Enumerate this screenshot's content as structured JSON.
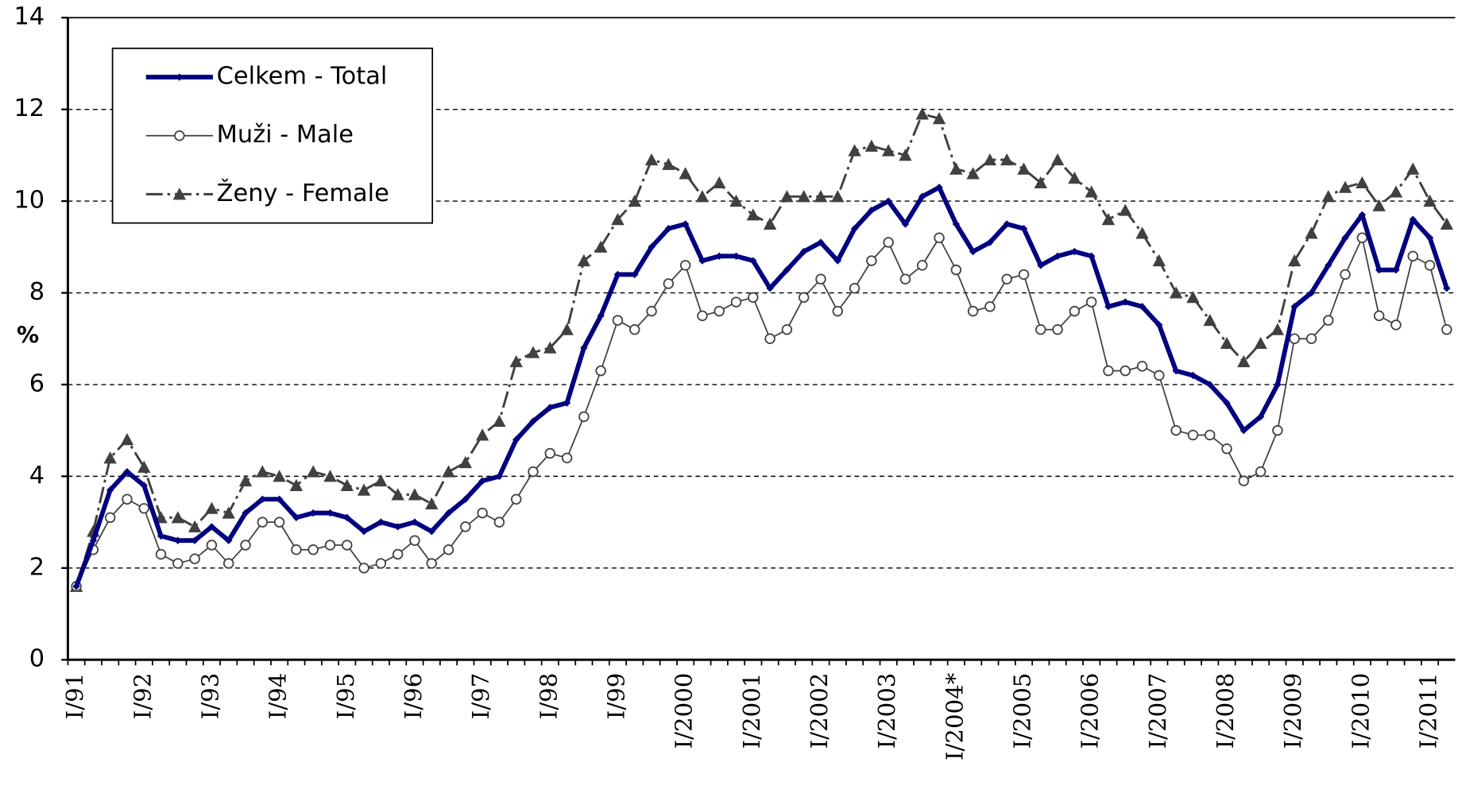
{
  "chart_data": {
    "type": "line",
    "y_label": "%",
    "categories": [
      "I/91",
      null,
      null,
      null,
      "I/92",
      null,
      null,
      null,
      "I/93",
      null,
      null,
      null,
      "I/94",
      null,
      null,
      null,
      "I/95",
      null,
      null,
      null,
      "I/96",
      null,
      null,
      null,
      "I/97",
      null,
      null,
      null,
      "I/98",
      null,
      null,
      null,
      "I/99",
      null,
      null,
      null,
      "I/2000",
      null,
      null,
      null,
      "I/2001",
      null,
      null,
      null,
      "I/2002",
      null,
      null,
      null,
      "I/2003",
      null,
      null,
      null,
      "I/2004*",
      null,
      null,
      null,
      "I/2005",
      null,
      null,
      null,
      "I/2006",
      null,
      null,
      null,
      "I/2007",
      null,
      null,
      null,
      "I/2008",
      null,
      null,
      null,
      "I/2009",
      null,
      null,
      null,
      "I/2010",
      null,
      null,
      null,
      "I/2011",
      null
    ],
    "series": [
      {
        "name": "Celkem - Total",
        "color": "#000080",
        "marker": "diamond",
        "values": [
          1.6,
          2.6,
          3.7,
          4.1,
          3.8,
          2.7,
          2.6,
          2.6,
          2.9,
          2.6,
          3.2,
          3.5,
          3.5,
          3.1,
          3.2,
          3.2,
          3.1,
          2.8,
          3.0,
          2.9,
          3.0,
          2.8,
          3.2,
          3.5,
          3.9,
          4.0,
          4.8,
          5.2,
          5.5,
          5.6,
          6.8,
          7.5,
          8.4,
          8.4,
          9.0,
          9.4,
          9.5,
          8.7,
          8.8,
          8.8,
          8.7,
          8.1,
          8.5,
          8.9,
          9.1,
          8.7,
          9.4,
          9.8,
          10.0,
          9.5,
          10.1,
          10.3,
          9.5,
          8.9,
          9.1,
          9.5,
          9.4,
          8.6,
          8.8,
          8.9,
          8.8,
          7.7,
          7.8,
          7.7,
          7.3,
          6.3,
          6.2,
          6.0,
          5.6,
          5.0,
          5.3,
          6.0,
          7.7,
          8.0,
          8.6,
          9.2,
          9.7,
          8.5,
          8.5,
          9.6,
          9.2,
          8.1
        ]
      },
      {
        "name": "Muži - Male",
        "color": "#404040",
        "marker": "circle",
        "values": [
          1.6,
          2.4,
          3.1,
          3.5,
          3.3,
          2.3,
          2.1,
          2.2,
          2.5,
          2.1,
          2.5,
          3.0,
          3.0,
          2.4,
          2.4,
          2.5,
          2.5,
          2.0,
          2.1,
          2.3,
          2.6,
          2.1,
          2.4,
          2.9,
          3.2,
          3.0,
          3.5,
          4.1,
          4.5,
          4.4,
          5.3,
          6.3,
          7.4,
          7.2,
          7.6,
          8.2,
          8.6,
          7.5,
          7.6,
          7.8,
          7.9,
          7.0,
          7.2,
          7.9,
          8.3,
          7.6,
          8.1,
          8.7,
          9.1,
          8.3,
          8.6,
          9.2,
          8.5,
          7.6,
          7.7,
          8.3,
          8.4,
          7.2,
          7.2,
          7.6,
          7.8,
          6.3,
          6.3,
          6.4,
          6.2,
          5.0,
          4.9,
          4.9,
          4.6,
          3.9,
          4.1,
          5.0,
          7.0,
          7.0,
          7.4,
          8.4,
          9.2,
          7.5,
          7.3,
          8.8,
          8.6,
          7.2
        ]
      },
      {
        "name": "Ženy - Female",
        "color": "#404040",
        "marker": "triangle",
        "values": [
          1.6,
          2.8,
          4.4,
          4.8,
          4.2,
          3.1,
          3.1,
          2.9,
          3.3,
          3.2,
          3.9,
          4.1,
          4.0,
          3.8,
          4.1,
          4.0,
          3.8,
          3.7,
          3.9,
          3.6,
          3.6,
          3.4,
          4.1,
          4.3,
          4.9,
          5.2,
          6.5,
          6.7,
          6.8,
          7.2,
          8.7,
          9.0,
          9.6,
          10.0,
          10.9,
          10.8,
          10.6,
          10.1,
          10.4,
          10.0,
          9.7,
          9.5,
          10.1,
          10.1,
          10.1,
          10.1,
          11.1,
          11.2,
          11.1,
          11.0,
          11.9,
          11.8,
          10.7,
          10.6,
          10.9,
          10.9,
          10.7,
          10.4,
          10.9,
          10.5,
          10.2,
          9.6,
          9.8,
          9.3,
          8.7,
          8.0,
          7.9,
          7.4,
          6.9,
          6.5,
          6.9,
          7.2,
          8.7,
          9.3,
          10.1,
          10.3,
          10.4,
          9.9,
          10.2,
          10.7,
          10.0,
          9.5
        ]
      }
    ],
    "ylim": [
      0,
      14
    ],
    "yticks": [
      0,
      2,
      4,
      6,
      8,
      10,
      12,
      14
    ],
    "grid": true,
    "legend": "upper left"
  }
}
